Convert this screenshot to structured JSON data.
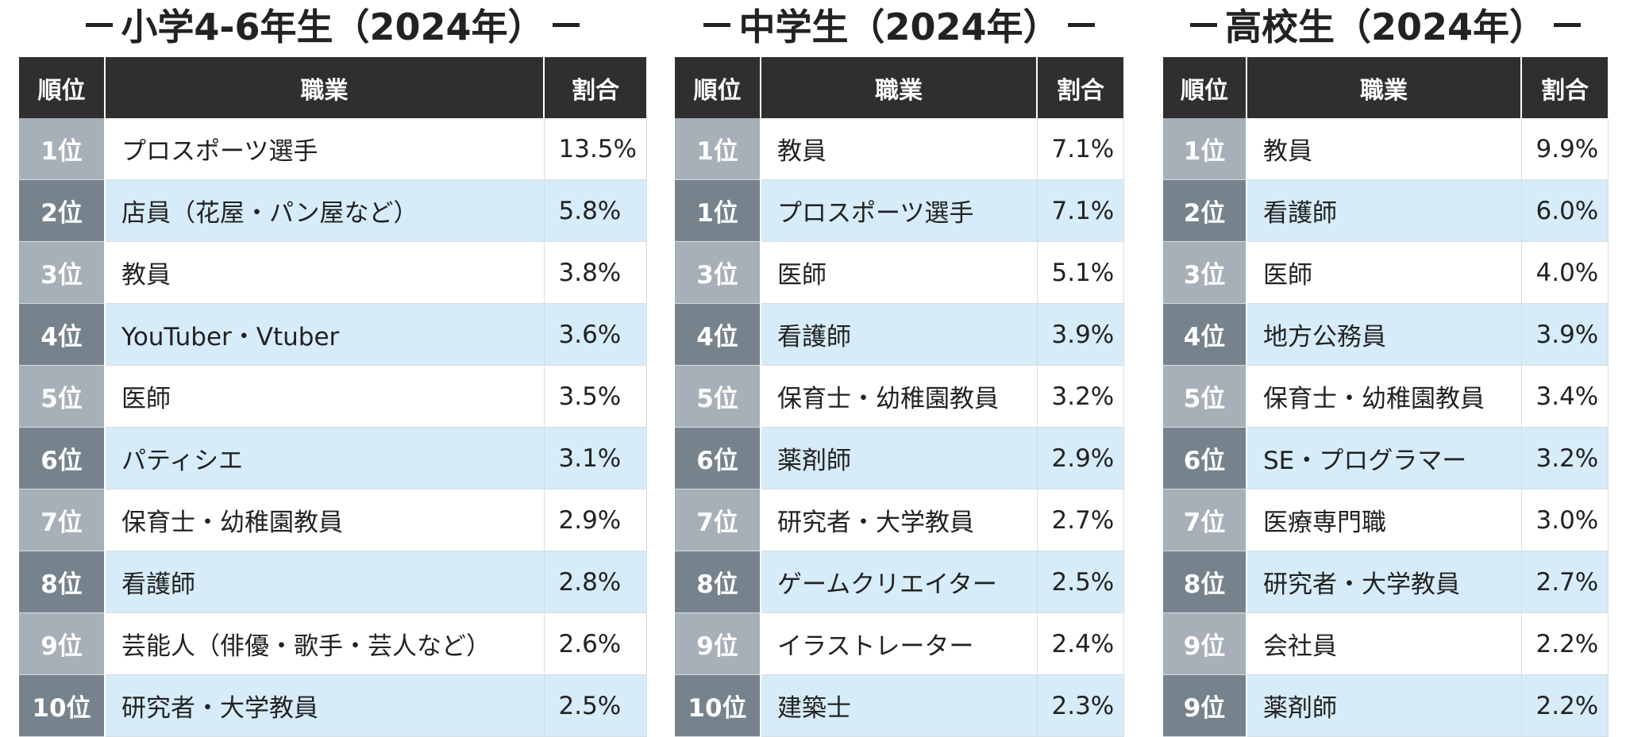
{
  "headers": {
    "rank": "順位",
    "job": "職業",
    "pct": "割合"
  },
  "sections": [
    {
      "title": "小学4-6年生（2024年）",
      "rows": [
        {
          "rank": "1位",
          "job": "プロスポーツ選手",
          "pct": "13.5%"
        },
        {
          "rank": "2位",
          "job": "店員（花屋・パン屋など）",
          "pct": "5.8%"
        },
        {
          "rank": "3位",
          "job": "教員",
          "pct": "3.8%"
        },
        {
          "rank": "4位",
          "job": "YouTuber・Vtuber",
          "pct": "3.6%"
        },
        {
          "rank": "5位",
          "job": "医師",
          "pct": "3.5%"
        },
        {
          "rank": "6位",
          "job": "パティシエ",
          "pct": "3.1%"
        },
        {
          "rank": "7位",
          "job": "保育士・幼稚園教員",
          "pct": "2.9%"
        },
        {
          "rank": "8位",
          "job": "看護師",
          "pct": "2.8%"
        },
        {
          "rank": "9位",
          "job": "芸能人（俳優・歌手・芸人など）",
          "pct": "2.6%"
        },
        {
          "rank": "10位",
          "job": "研究者・大学教員",
          "pct": "2.5%"
        }
      ]
    },
    {
      "title": "中学生（2024年）",
      "rows": [
        {
          "rank": "1位",
          "job": "教員",
          "pct": "7.1%"
        },
        {
          "rank": "1位",
          "job": "プロスポーツ選手",
          "pct": "7.1%"
        },
        {
          "rank": "3位",
          "job": "医師",
          "pct": "5.1%"
        },
        {
          "rank": "4位",
          "job": "看護師",
          "pct": "3.9%"
        },
        {
          "rank": "5位",
          "job": "保育士・幼稚園教員",
          "pct": "3.2%"
        },
        {
          "rank": "6位",
          "job": "薬剤師",
          "pct": "2.9%"
        },
        {
          "rank": "7位",
          "job": "研究者・大学教員",
          "pct": "2.7%"
        },
        {
          "rank": "8位",
          "job": "ゲームクリエイター",
          "pct": "2.5%"
        },
        {
          "rank": "9位",
          "job": "イラストレーター",
          "pct": "2.4%"
        },
        {
          "rank": "10位",
          "job": "建築士",
          "pct": "2.3%"
        }
      ]
    },
    {
      "title": "高校生（2024年）",
      "rows": [
        {
          "rank": "1位",
          "job": "教員",
          "pct": "9.9%"
        },
        {
          "rank": "2位",
          "job": "看護師",
          "pct": "6.0%"
        },
        {
          "rank": "3位",
          "job": "医師",
          "pct": "4.0%"
        },
        {
          "rank": "4位",
          "job": "地方公務員",
          "pct": "3.9%"
        },
        {
          "rank": "5位",
          "job": "保育士・幼稚園教員",
          "pct": "3.4%"
        },
        {
          "rank": "6位",
          "job": "SE・プログラマー",
          "pct": "3.2%"
        },
        {
          "rank": "7位",
          "job": "医療専門職",
          "pct": "3.0%"
        },
        {
          "rank": "8位",
          "job": "研究者・大学教員",
          "pct": "2.7%"
        },
        {
          "rank": "9位",
          "job": "会社員",
          "pct": "2.2%"
        },
        {
          "rank": "9位",
          "job": "薬剤師",
          "pct": "2.2%"
        }
      ]
    }
  ]
}
